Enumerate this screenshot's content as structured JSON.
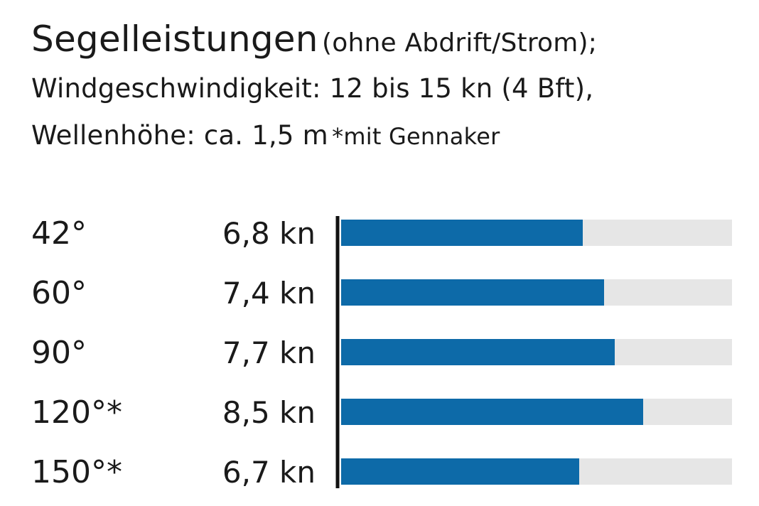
{
  "header": {
    "title": "Segelleistungen",
    "title_suffix": "(ohne Abdrift/Strom);",
    "line2": "Windgeschwindigkeit: 12 bis 15 kn (4 Bft),",
    "line3": "Wellenhöhe: ca. 1,5 m",
    "note": "*mit Gennaker"
  },
  "colors": {
    "bar": "#0d6aa8",
    "track": "#e6e6e6",
    "axis": "#111111",
    "text": "#1a1a1a"
  },
  "chart_data": {
    "type": "bar",
    "orientation": "horizontal",
    "title": "",
    "xlabel": "",
    "ylabel": "",
    "xlim": [
      0,
      11
    ],
    "categories": [
      "42°",
      "60°",
      "90°",
      "120°*",
      "150°*"
    ],
    "values": [
      6.8,
      7.4,
      7.7,
      8.5,
      6.7
    ],
    "value_labels": [
      "6,8 kn",
      "7,4 kn",
      "7,7 kn",
      "8,5 kn",
      "6,7 kn"
    ],
    "grid": false,
    "legend": "none"
  }
}
